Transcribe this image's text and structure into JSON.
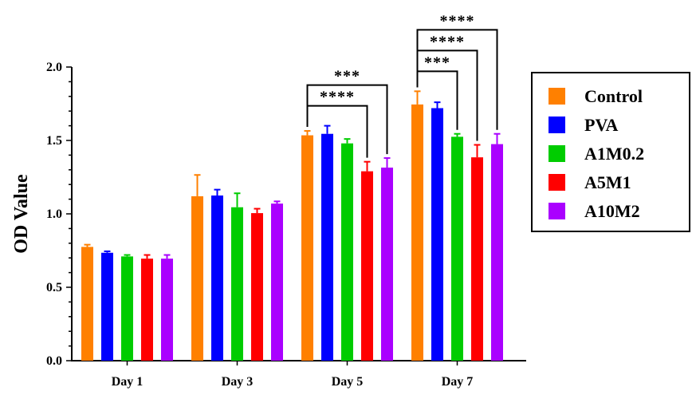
{
  "chart_data": {
    "type": "bar",
    "title": "",
    "xlabel": "",
    "ylabel": "OD Value",
    "ylim": [
      0,
      2.0
    ],
    "yticks": [
      "0.0",
      "0.5",
      "1.0",
      "1.5",
      "2.0"
    ],
    "grid": false,
    "legend_position": "right",
    "categories": [
      "Day 1",
      "Day 3",
      "Day 5",
      "Day 7"
    ],
    "series": [
      {
        "name": "Control",
        "color": "#FF8000",
        "values": [
          0.775,
          1.12,
          1.535,
          1.745
        ],
        "errors": [
          0.015,
          0.145,
          0.03,
          0.09
        ]
      },
      {
        "name": "PVA",
        "color": "#0000FF",
        "values": [
          0.735,
          1.125,
          1.545,
          1.72
        ],
        "errors": [
          0.01,
          0.04,
          0.055,
          0.04
        ]
      },
      {
        "name": "A1M0.2",
        "color": "#00CC00",
        "values": [
          0.71,
          1.045,
          1.48,
          1.525
        ],
        "errors": [
          0.01,
          0.095,
          0.03,
          0.02
        ]
      },
      {
        "name": "A5M1",
        "color": "#FF0000",
        "values": [
          0.695,
          1.005,
          1.29,
          1.385
        ],
        "errors": [
          0.025,
          0.03,
          0.065,
          0.085
        ]
      },
      {
        "name": "A10M2",
        "color": "#AA00FF",
        "values": [
          0.695,
          1.07,
          1.315,
          1.475
        ],
        "errors": [
          0.025,
          0.015,
          0.065,
          0.07
        ]
      }
    ],
    "annotations": [
      {
        "category": "Day 5",
        "from": "Control",
        "to": "A5M1",
        "label": "****"
      },
      {
        "category": "Day 5",
        "from": "Control",
        "to": "A10M2",
        "label": "***"
      },
      {
        "category": "Day 7",
        "from": "Control",
        "to": "A1M0.2",
        "label": "***"
      },
      {
        "category": "Day 7",
        "from": "Control",
        "to": "A5M1",
        "label": "****"
      },
      {
        "category": "Day 7",
        "from": "Control",
        "to": "A10M2",
        "label": "****"
      }
    ]
  }
}
